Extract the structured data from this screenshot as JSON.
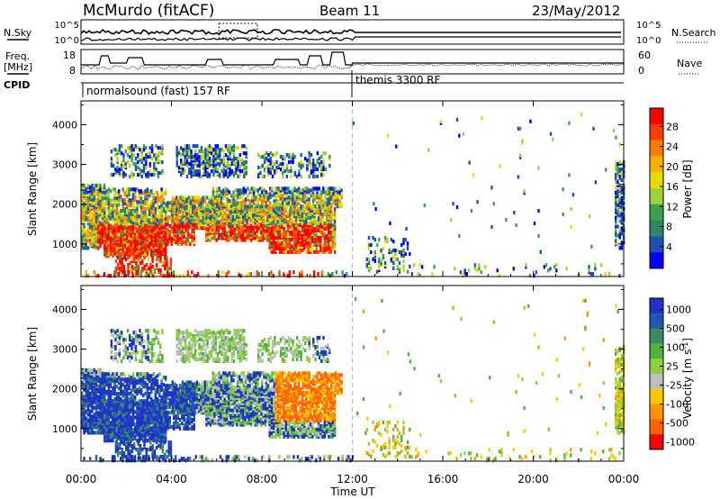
{
  "header": {
    "station": "McMurdo (fitACF)",
    "beam": "Beam 11",
    "date": "23/May/2012"
  },
  "sky_panel": {
    "left_label": "N.Sky",
    "right_label": "N.Search",
    "left_ticks": [
      "10^5",
      "10^0"
    ],
    "right_ticks": [
      "10^5",
      "10^0"
    ]
  },
  "freq_panel": {
    "left_label_top": "Freq.",
    "left_label_bottom": "[MHz]",
    "right_label": "Nave",
    "left_ticks": [
      "18",
      "8"
    ],
    "right_ticks": [
      "60",
      "0"
    ]
  },
  "cpid": {
    "label": "CPID",
    "mode1": "normalsound (fast) 157 RF",
    "mode2": "themis 3300 RF"
  },
  "chart_data": [
    {
      "type": "heatmap",
      "name": "power",
      "xlabel": "Time UT",
      "ylabel": "Slant Range [km]",
      "xlim": [
        0,
        24
      ],
      "ylim": [
        180,
        4600
      ],
      "x_ticks": [
        "00:00",
        "04:00",
        "08:00",
        "12:00",
        "16:00",
        "20:00",
        "00:00"
      ],
      "y_ticks": [
        1000,
        2000,
        3000,
        4000
      ],
      "colorbar_label": "Power [dB]",
      "colorbar_ticks": [
        "28",
        "24",
        "20",
        "16",
        "12",
        "8",
        "4"
      ],
      "colorbar_colors": [
        "#ff0000",
        "#ff3c00",
        "#ff7a00",
        "#ffb000",
        "#e6dc00",
        "#9cd23c",
        "#3ca050",
        "#2a8a64",
        "#1e50b4",
        "#0000ff"
      ],
      "mode_change_time": 12.0
    },
    {
      "type": "heatmap",
      "name": "velocity",
      "xlabel": "Time UT",
      "ylabel": "Slant Range [km]",
      "xlim": [
        0,
        24
      ],
      "ylim": [
        180,
        4600
      ],
      "x_ticks": [
        "00:00",
        "04:00",
        "08:00",
        "12:00",
        "16:00",
        "20:00",
        "00:00"
      ],
      "y_ticks": [
        1000,
        2000,
        3000,
        4000
      ],
      "colorbar_label": "Velocity [m s",
      "colorbar_label_sup": "-1",
      "colorbar_label_close": "]",
      "colorbar_ticks": [
        "1000",
        "500",
        "100",
        "25",
        "-25",
        "-100",
        "-500",
        "-1000"
      ],
      "colorbar_colors": [
        "#1e32c8",
        "#1e5ab4",
        "#3c8c64",
        "#50b43c",
        "#8cd23c",
        "#bebebe",
        "#ffc800",
        "#ff9600",
        "#ff6400",
        "#ff0000"
      ],
      "mode_change_time": 12.0
    }
  ],
  "time_axis_label": "Time UT",
  "colors": {
    "frame": "#000000",
    "mode_line": "#bbbbbb"
  }
}
